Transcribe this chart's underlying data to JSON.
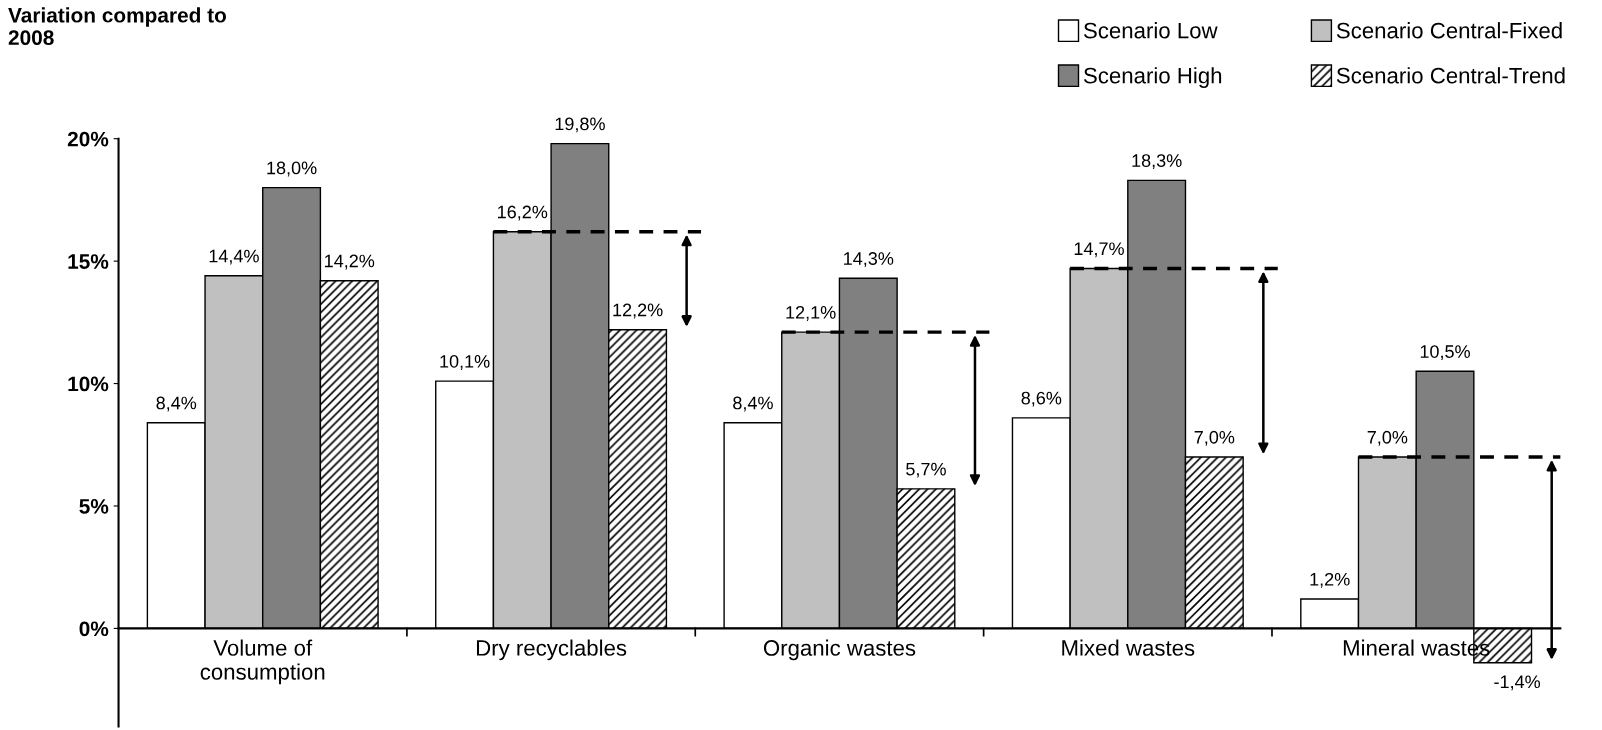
{
  "chart_data": {
    "type": "bar",
    "ylabel": "Variation compared to\n2008",
    "categories": [
      "Volume of\nconsumption",
      "Dry recyclables",
      "Organic wastes",
      "Mixed wastes",
      "Mineral wastes"
    ],
    "series": [
      {
        "name": "Scenario Low",
        "color": "#ffffff",
        "values": [
          8.4,
          10.1,
          8.4,
          8.6,
          1.2
        ],
        "value_labels": [
          "8,4%",
          "10,1%",
          "8,4%",
          "8,6%",
          "1,2%"
        ]
      },
      {
        "name": "Scenario Central-Fixed",
        "color": "#c0c0c0",
        "values": [
          14.4,
          16.2,
          12.1,
          14.7,
          7.0
        ],
        "value_labels": [
          "14,4%",
          "16,2%",
          "12,1%",
          "14,7%",
          "7,0%"
        ]
      },
      {
        "name": "Scenario High",
        "color": "#808080",
        "values": [
          18.0,
          19.8,
          14.3,
          18.3,
          10.5
        ],
        "value_labels": [
          "18,0%",
          "19,8%",
          "14,3%",
          "18,3%",
          "10,5%"
        ]
      },
      {
        "name": "Scenario Central-Trend",
        "color": "#000000",
        "values": [
          14.2,
          12.2,
          5.7,
          7.0,
          -1.4
        ],
        "value_labels": [
          "14,2%",
          "12,2%",
          "5,7%",
          "7,0%",
          "-1,4%"
        ]
      }
    ],
    "ylim": [
      -4,
      20
    ],
    "yticks": [
      {
        "value": 0,
        "label": "0%"
      },
      {
        "value": 5,
        "label": "5%"
      },
      {
        "value": 10,
        "label": "10%"
      },
      {
        "value": 15,
        "label": "15%"
      },
      {
        "value": 20,
        "label": "20%"
      }
    ],
    "grid": false,
    "legend": "top right"
  }
}
